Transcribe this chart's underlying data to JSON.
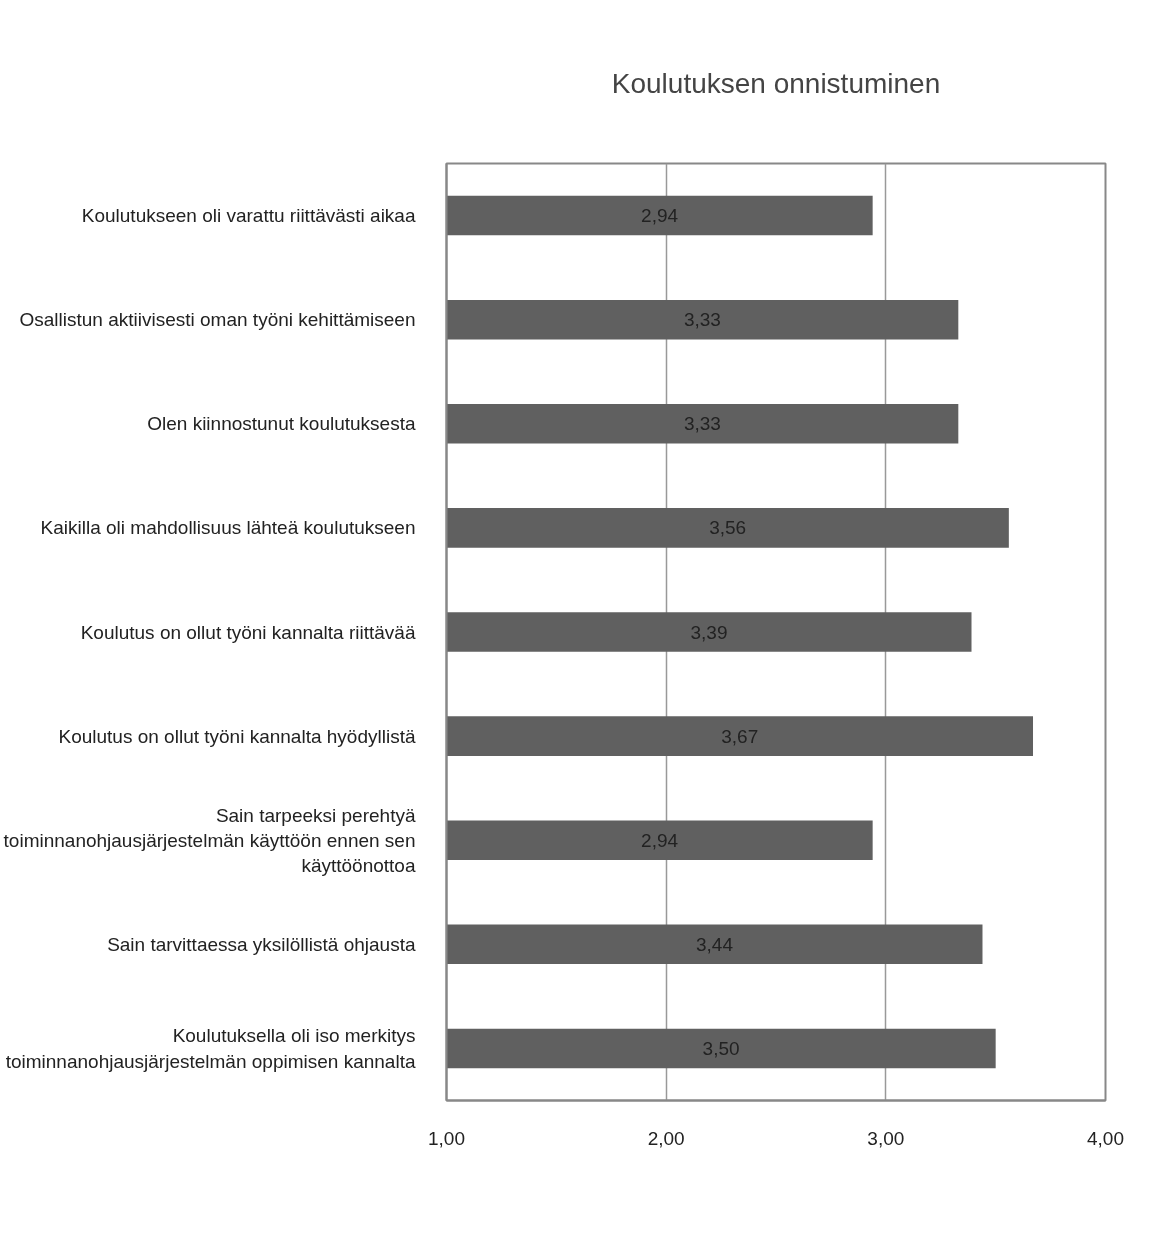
{
  "chart_data": {
    "type": "bar",
    "orientation": "horizontal",
    "title": "Koulutuksen onnistuminen",
    "categories": [
      "Koulutukseen oli varattu riittävästi aikaa",
      "Osallistun aktiivisesti oman työni kehittämiseen",
      "Olen kiinnostunut koulutuksesta",
      "Kaikilla oli mahdollisuus lähteä koulutukseen",
      "Koulutus on ollut työni kannalta riittävää",
      "Koulutus on ollut työni kannalta hyödyllistä",
      "Sain tarpeeksi perehtyä toiminnanohjausjärjestelmän käyttöön ennen sen käyttöönottoa",
      "Sain tarvittaessa yksilöllistä ohjausta",
      "Koulutuksella oli iso merkitys toiminnanohjausjärjestelmän oppimisen kannalta"
    ],
    "values": [
      2.94,
      3.33,
      3.33,
      3.56,
      3.39,
      3.67,
      2.94,
      3.44,
      3.5
    ],
    "value_labels": [
      "2,94",
      "3,33",
      "3,33",
      "3,56",
      "3,39",
      "3,67",
      "2,94",
      "3,44",
      "3,50"
    ],
    "color": "#606060",
    "xlim": [
      1,
      4
    ],
    "xticks": [
      {
        "value": 1,
        "label": "1,00"
      },
      {
        "value": 2,
        "label": "2,00"
      },
      {
        "value": 3,
        "label": "3,00"
      },
      {
        "value": 4,
        "label": "4,00"
      }
    ],
    "grid": "x"
  }
}
